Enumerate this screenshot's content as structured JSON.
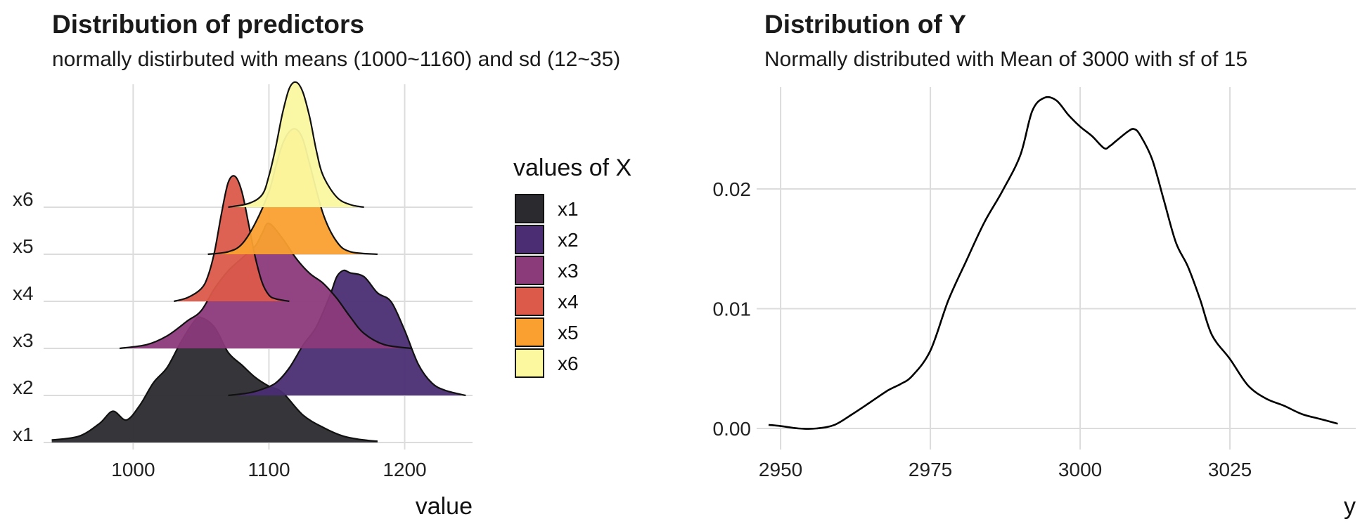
{
  "left_panel": {
    "title": "Distribution of predictors",
    "subtitle": "normally distirbuted with means (1000~1160) and sd (12~35)"
  },
  "right_panel": {
    "title": "Distribution of Y",
    "subtitle": "Normally distributed with Mean of 3000 with sf of 15"
  },
  "chart_data": [
    {
      "type": "ridgeline",
      "title": "Distribution of predictors",
      "subtitle": "normally distirbuted with means (1000~1160) and sd (12~35)",
      "xlabel": "value",
      "ylabel": "",
      "xlim": [
        934,
        1250
      ],
      "x_ticks": [
        1000,
        1100,
        1200
      ],
      "categories": [
        "x1",
        "x2",
        "x3",
        "x4",
        "x5",
        "x6"
      ],
      "grid": true,
      "legend": {
        "title": "values of X",
        "position": "right",
        "entries": [
          "x1",
          "x2",
          "x3",
          "x4",
          "x5",
          "x6"
        ]
      },
      "series": [
        {
          "name": "x1",
          "color": "#2b2b2f",
          "mean": 1050,
          "sd": 30,
          "range": [
            940,
            1180
          ],
          "x": [
            940,
            960,
            975,
            985,
            995,
            1005,
            1015,
            1025,
            1035,
            1045,
            1050,
            1060,
            1070,
            1080,
            1090,
            1100,
            1110,
            1125,
            1140,
            1155,
            1170,
            1180
          ],
          "density": [
            0.02,
            0.05,
            0.15,
            0.25,
            0.18,
            0.3,
            0.48,
            0.6,
            0.8,
            0.97,
            1.0,
            0.92,
            0.72,
            0.62,
            0.52,
            0.45,
            0.4,
            0.22,
            0.12,
            0.05,
            0.02,
            0.01
          ]
        },
        {
          "name": "x2",
          "color": "#4a2d73",
          "mean": 1160,
          "sd": 30,
          "range": [
            1070,
            1245
          ],
          "x": [
            1070,
            1085,
            1095,
            1105,
            1115,
            1125,
            1135,
            1145,
            1150,
            1155,
            1160,
            1170,
            1180,
            1190,
            1200,
            1210,
            1220,
            1230,
            1245
          ],
          "density": [
            0.0,
            0.02,
            0.05,
            0.1,
            0.22,
            0.4,
            0.55,
            0.8,
            0.95,
            1.0,
            0.98,
            0.95,
            0.82,
            0.75,
            0.52,
            0.25,
            0.1,
            0.04,
            0.0
          ]
        },
        {
          "name": "x3",
          "color": "#8b3a7a",
          "mean": 1100,
          "sd": 35,
          "range": [
            990,
            1205
          ],
          "x": [
            990,
            1010,
            1025,
            1040,
            1050,
            1060,
            1070,
            1080,
            1090,
            1095,
            1100,
            1110,
            1120,
            1130,
            1140,
            1150,
            1160,
            1170,
            1185,
            1205
          ],
          "density": [
            0.0,
            0.03,
            0.1,
            0.22,
            0.3,
            0.48,
            0.62,
            0.72,
            0.82,
            0.92,
            1.0,
            0.88,
            0.72,
            0.6,
            0.52,
            0.4,
            0.25,
            0.12,
            0.03,
            0.0
          ]
        },
        {
          "name": "x4",
          "color": "#dc5a4a",
          "mean": 1075,
          "sd": 12,
          "range": [
            1030,
            1115
          ],
          "x": [
            1030,
            1040,
            1050,
            1055,
            1060,
            1065,
            1070,
            1075,
            1080,
            1085,
            1090,
            1095,
            1100,
            1105,
            1115
          ],
          "density": [
            0.0,
            0.03,
            0.1,
            0.2,
            0.4,
            0.7,
            0.95,
            1.0,
            0.88,
            0.62,
            0.35,
            0.15,
            0.05,
            0.02,
            0.0
          ]
        },
        {
          "name": "x5",
          "color": "#f9a030",
          "mean": 1120,
          "sd": 15,
          "range": [
            1055,
            1180
          ],
          "x": [
            1055,
            1070,
            1080,
            1090,
            1100,
            1105,
            1110,
            1115,
            1120,
            1125,
            1130,
            1140,
            1150,
            1160,
            1180
          ],
          "density": [
            0.0,
            0.02,
            0.08,
            0.25,
            0.5,
            0.7,
            0.88,
            0.98,
            1.0,
            0.92,
            0.72,
            0.32,
            0.1,
            0.02,
            0.0
          ]
        },
        {
          "name": "x6",
          "color": "#fbf8a0",
          "mean": 1120,
          "sd": 12,
          "range": [
            1070,
            1170
          ],
          "x": [
            1070,
            1085,
            1095,
            1100,
            1105,
            1110,
            1115,
            1120,
            1125,
            1130,
            1135,
            1140,
            1150,
            1160,
            1170
          ],
          "density": [
            0.0,
            0.03,
            0.1,
            0.25,
            0.48,
            0.75,
            0.95,
            1.0,
            0.92,
            0.72,
            0.45,
            0.25,
            0.08,
            0.02,
            0.0
          ]
        }
      ]
    },
    {
      "type": "line",
      "title": "Distribution of Y",
      "subtitle": "Normally distributed with Mean of 3000 with sf of 15",
      "xlabel": "y",
      "ylabel": "",
      "xlim": [
        2946,
        3046
      ],
      "ylim": [
        0,
        0.0285
      ],
      "x_ticks": [
        2950,
        2975,
        3000,
        3025
      ],
      "y_ticks": [
        0.0,
        0.01,
        0.02
      ],
      "y_tick_labels": [
        "0.00",
        "0.01",
        "0.02"
      ],
      "grid": true,
      "series": [
        {
          "name": "",
          "x": [
            2948,
            2950,
            2953,
            2956,
            2959,
            2962,
            2965,
            2968,
            2970,
            2972,
            2975,
            2978,
            2981,
            2984,
            2987,
            2990,
            2992,
            2994,
            2996,
            2998,
            3000,
            3002,
            3004,
            3005,
            3006,
            3008,
            3009,
            3010,
            3012,
            3014,
            3016,
            3018,
            3020,
            3022,
            3025,
            3028,
            3031,
            3034,
            3037,
            3040,
            3043
          ],
          "y": [
            0.0003,
            0.0002,
            0.0,
            0.0,
            0.0003,
            0.0012,
            0.0022,
            0.0032,
            0.0037,
            0.0044,
            0.0065,
            0.0107,
            0.014,
            0.0172,
            0.0198,
            0.0228,
            0.0265,
            0.0276,
            0.0274,
            0.0262,
            0.0252,
            0.0244,
            0.0234,
            0.0236,
            0.024,
            0.0248,
            0.025,
            0.0245,
            0.0225,
            0.019,
            0.0155,
            0.0135,
            0.0108,
            0.0078,
            0.0058,
            0.0036,
            0.0025,
            0.0019,
            0.0012,
            0.0008,
            0.0004
          ]
        }
      ]
    }
  ]
}
